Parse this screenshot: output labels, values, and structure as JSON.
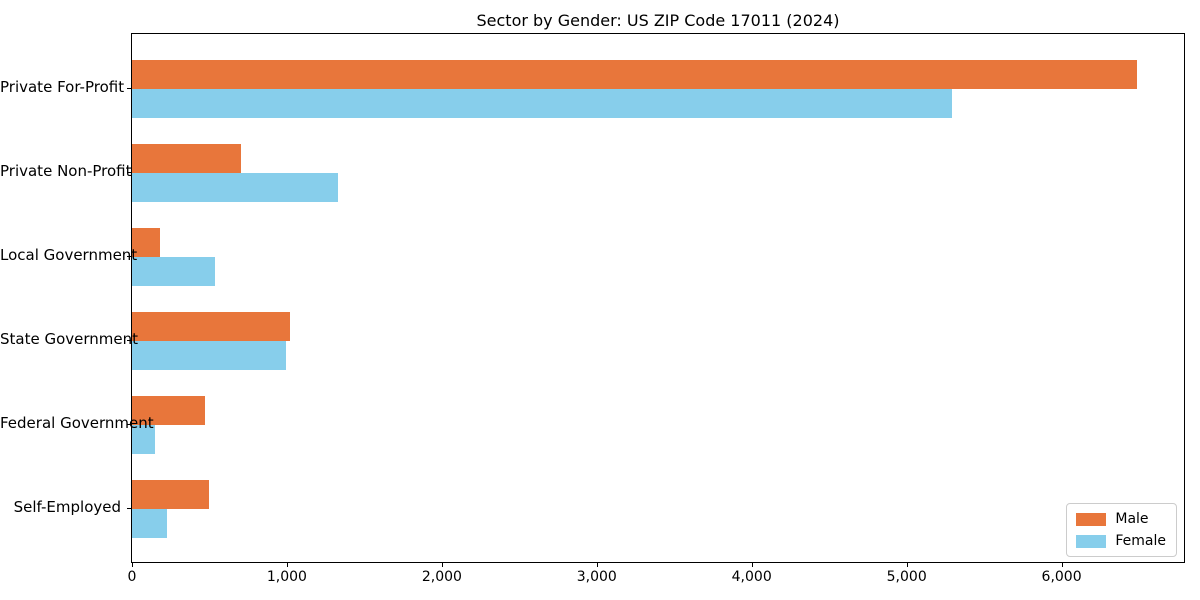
{
  "chart_data": {
    "type": "bar",
    "orientation": "horizontal",
    "title": "Sector by Gender: US ZIP Code 17011 (2024)",
    "categories": [
      "Private For-Profit",
      "Private Non-Profit",
      "Local Government",
      "State Government",
      "Federal Government",
      "Self-Employed"
    ],
    "series": [
      {
        "name": "Male",
        "color": "#e8763b",
        "values": [
          6485,
          705,
          180,
          1020,
          470,
          495
        ]
      },
      {
        "name": "Female",
        "color": "#87ceeb",
        "values": [
          5295,
          1330,
          535,
          995,
          150,
          225
        ]
      }
    ],
    "xlim": [
      0,
      6790
    ],
    "xticks": [
      0,
      1000,
      2000,
      3000,
      4000,
      5000,
      6000
    ],
    "xtick_labels": [
      "0",
      "1,000",
      "2,000",
      "3,000",
      "4,000",
      "5,000",
      "6,000"
    ],
    "xlabel": "",
    "ylabel": "",
    "grid": false,
    "legend_position": "lower right",
    "legend_labels": [
      "Male",
      "Female"
    ]
  }
}
